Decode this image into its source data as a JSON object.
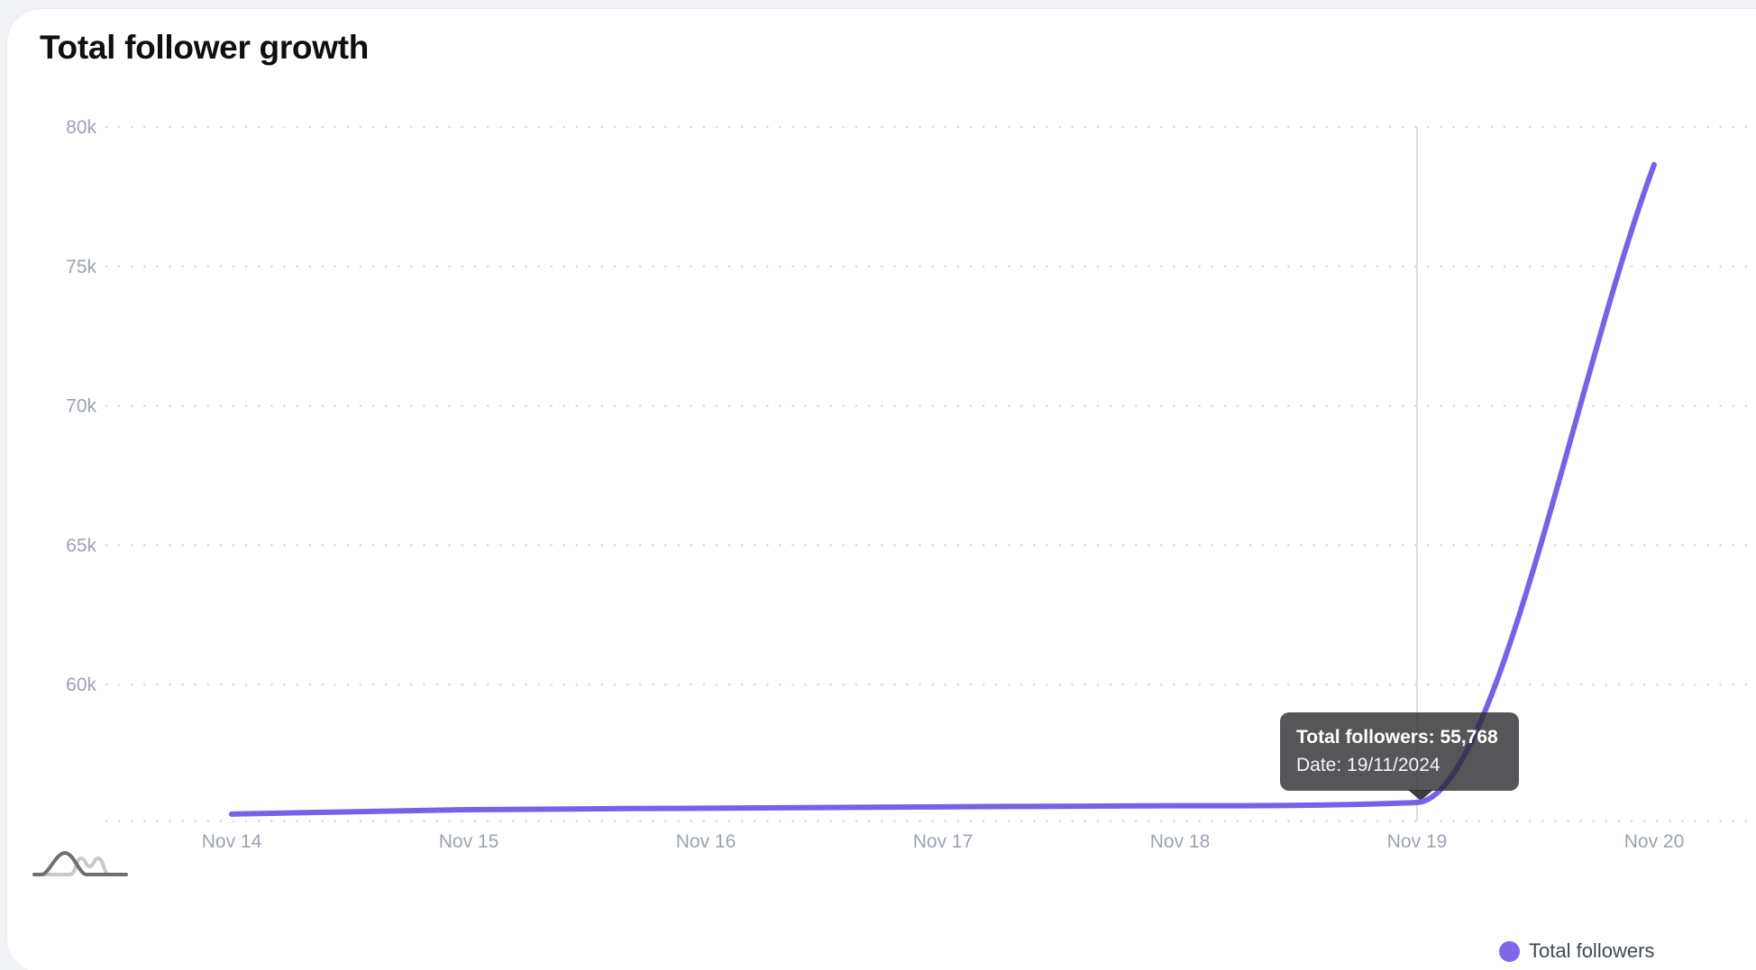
{
  "page": {
    "background": "#F1F2F6"
  },
  "card": {
    "title": "Total follower growth",
    "background": "#FFFFFF"
  },
  "chart_data": {
    "type": "line",
    "title": "Total follower growth",
    "categories": [
      "Nov 14",
      "Nov 15",
      "Nov 16",
      "Nov 17",
      "Nov 18",
      "Nov 19",
      "Nov 20"
    ],
    "series": [
      {
        "name": "Total followers",
        "color": "#7A5FE8",
        "values": [
          55350,
          55510,
          55560,
          55610,
          55650,
          55768,
          78650
        ]
      }
    ],
    "y_ticks": [
      {
        "label": "80k",
        "value": 80000
      },
      {
        "label": "75k",
        "value": 75000
      },
      {
        "label": "70k",
        "value": 70000
      },
      {
        "label": "65k",
        "value": 65000
      },
      {
        "label": "60k",
        "value": 60000
      }
    ],
    "ylim": [
      55100,
      80000
    ],
    "xlabel": "",
    "ylabel": "",
    "grid": "dotted-horizontal",
    "legend_position": "bottom-right",
    "highlighted_category": "Nov 19",
    "highlighted_value": 55768
  },
  "tooltip": {
    "line1": "Total followers: 55,768",
    "line2": "Date: 19/11/2024"
  },
  "legend": {
    "label": "Total followers",
    "dot_color": "#8266EA"
  },
  "colors": {
    "line": "#7A5FE8",
    "axis_label": "#9CA3B0",
    "grid_dot": "#D8DBE0",
    "crosshair": "#D2D4DA",
    "tooltip_bg": "rgba(44,44,47,0.80)",
    "logo_dark": "#6E6E6E",
    "logo_light": "#C9C9C9"
  }
}
